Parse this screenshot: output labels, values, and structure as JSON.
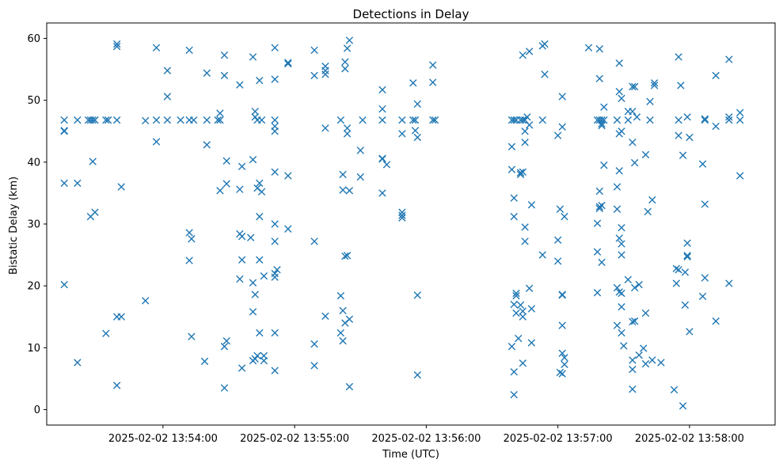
{
  "chart_data": {
    "type": "scatter",
    "title": "Detections in Delay",
    "xlabel": "Time (UTC)",
    "ylabel": "Bistatic Delay (km)",
    "x_axis_type": "time",
    "x_ticks": [
      {
        "t": "13:54:00",
        "label": "2025-02-02 13:54:00"
      },
      {
        "t": "13:55:00",
        "label": "2025-02-02 13:55:00"
      },
      {
        "t": "13:56:00",
        "label": "2025-02-02 13:56:00"
      },
      {
        "t": "13:57:00",
        "label": "2025-02-02 13:57:00"
      },
      {
        "t": "13:58:00",
        "label": "2025-02-02 13:58:00"
      }
    ],
    "y_ticks": [
      0,
      10,
      20,
      30,
      40,
      50,
      60
    ],
    "xlim": [
      "13:53:07",
      "13:58:39"
    ],
    "ylim": [
      -2.5,
      62.5
    ],
    "grid": false,
    "marker": "x",
    "color": "#1f77b4",
    "points": [
      {
        "t": "13:53:15",
        "y": 46.8
      },
      {
        "t": "13:53:15",
        "y": 45.1
      },
      {
        "t": "13:53:15",
        "y": 45.0
      },
      {
        "t": "13:53:15",
        "y": 36.6
      },
      {
        "t": "13:53:15",
        "y": 20.2
      },
      {
        "t": "13:53:21",
        "y": 46.8
      },
      {
        "t": "13:53:21",
        "y": 36.6
      },
      {
        "t": "13:53:21",
        "y": 7.6
      },
      {
        "t": "13:53:26",
        "y": 46.8
      },
      {
        "t": "13:53:27",
        "y": 46.8
      },
      {
        "t": "13:53:27",
        "y": 31.2
      },
      {
        "t": "13:53:28",
        "y": 46.8
      },
      {
        "t": "13:53:28",
        "y": 40.1
      },
      {
        "t": "13:53:29",
        "y": 46.8
      },
      {
        "t": "13:53:29",
        "y": 31.9
      },
      {
        "t": "13:53:34",
        "y": 46.8
      },
      {
        "t": "13:53:34",
        "y": 12.3
      },
      {
        "t": "13:53:35",
        "y": 46.8
      },
      {
        "t": "13:53:39",
        "y": 59.1
      },
      {
        "t": "13:53:39",
        "y": 58.7
      },
      {
        "t": "13:53:39",
        "y": 46.8
      },
      {
        "t": "13:53:39",
        "y": 15.0
      },
      {
        "t": "13:53:39",
        "y": 3.9
      },
      {
        "t": "13:53:41",
        "y": 36.0
      },
      {
        "t": "13:53:41",
        "y": 15.0
      },
      {
        "t": "13:53:52",
        "y": 46.7
      },
      {
        "t": "13:53:52",
        "y": 17.6
      },
      {
        "t": "13:53:57",
        "y": 58.5
      },
      {
        "t": "13:53:57",
        "y": 46.8
      },
      {
        "t": "13:53:57",
        "y": 43.3
      },
      {
        "t": "13:54:02",
        "y": 54.8
      },
      {
        "t": "13:54:02",
        "y": 50.6
      },
      {
        "t": "13:54:02",
        "y": 46.8
      },
      {
        "t": "13:54:08",
        "y": 46.8
      },
      {
        "t": "13:54:12",
        "y": 58.1
      },
      {
        "t": "13:54:12",
        "y": 46.8
      },
      {
        "t": "13:54:12",
        "y": 28.6
      },
      {
        "t": "13:54:12",
        "y": 24.1
      },
      {
        "t": "13:54:13",
        "y": 27.6
      },
      {
        "t": "13:54:13",
        "y": 11.8
      },
      {
        "t": "13:54:14",
        "y": 46.8
      },
      {
        "t": "13:54:19",
        "y": 7.8
      },
      {
        "t": "13:54:20",
        "y": 54.4
      },
      {
        "t": "13:54:20",
        "y": 46.8
      },
      {
        "t": "13:54:20",
        "y": 42.8
      },
      {
        "t": "13:54:25",
        "y": 46.8
      },
      {
        "t": "13:54:26",
        "y": 46.8
      },
      {
        "t": "13:54:26",
        "y": 47.9
      },
      {
        "t": "13:54:26",
        "y": 35.4
      },
      {
        "t": "13:54:28",
        "y": 57.3
      },
      {
        "t": "13:54:28",
        "y": 54.0
      },
      {
        "t": "13:54:28",
        "y": 10.2
      },
      {
        "t": "13:54:28",
        "y": 3.5
      },
      {
        "t": "13:54:29",
        "y": 40.2
      },
      {
        "t": "13:54:29",
        "y": 36.5
      },
      {
        "t": "13:54:29",
        "y": 11.1
      },
      {
        "t": "13:54:35",
        "y": 52.5
      },
      {
        "t": "13:54:35",
        "y": 35.6
      },
      {
        "t": "13:54:35",
        "y": 28.4
      },
      {
        "t": "13:54:35",
        "y": 21.1
      },
      {
        "t": "13:54:36",
        "y": 39.3
      },
      {
        "t": "13:54:36",
        "y": 28.0
      },
      {
        "t": "13:54:36",
        "y": 24.2
      },
      {
        "t": "13:54:36",
        "y": 6.7
      },
      {
        "t": "13:54:40",
        "y": 27.8
      },
      {
        "t": "13:54:41",
        "y": 57.0
      },
      {
        "t": "13:54:41",
        "y": 40.4
      },
      {
        "t": "13:54:41",
        "y": 20.5
      },
      {
        "t": "13:54:41",
        "y": 15.8
      },
      {
        "t": "13:54:41",
        "y": 7.9
      },
      {
        "t": "13:54:42",
        "y": 48.2
      },
      {
        "t": "13:54:42",
        "y": 47.3
      },
      {
        "t": "13:54:42",
        "y": 18.6
      },
      {
        "t": "13:54:42",
        "y": 8.2
      },
      {
        "t": "13:54:43",
        "y": 46.8
      },
      {
        "t": "13:54:43",
        "y": 35.8
      },
      {
        "t": "13:54:43",
        "y": 8.7
      },
      {
        "t": "13:54:44",
        "y": 53.2
      },
      {
        "t": "13:54:44",
        "y": 36.6
      },
      {
        "t": "13:54:44",
        "y": 31.2
      },
      {
        "t": "13:54:44",
        "y": 24.2
      },
      {
        "t": "13:54:44",
        "y": 12.4
      },
      {
        "t": "13:54:45",
        "y": 46.8
      },
      {
        "t": "13:54:45",
        "y": 35.2
      },
      {
        "t": "13:54:46",
        "y": 21.6
      },
      {
        "t": "13:54:46",
        "y": 8.7
      },
      {
        "t": "13:54:46",
        "y": 7.9
      },
      {
        "t": "13:54:51",
        "y": 58.5
      },
      {
        "t": "13:54:51",
        "y": 53.4
      },
      {
        "t": "13:54:51",
        "y": 46.8
      },
      {
        "t": "13:54:51",
        "y": 45.8
      },
      {
        "t": "13:54:51",
        "y": 45.0
      },
      {
        "t": "13:54:51",
        "y": 38.4
      },
      {
        "t": "13:54:51",
        "y": 30.0
      },
      {
        "t": "13:54:51",
        "y": 27.2
      },
      {
        "t": "13:54:51",
        "y": 22.0
      },
      {
        "t": "13:54:51",
        "y": 21.4
      },
      {
        "t": "13:54:51",
        "y": 12.4
      },
      {
        "t": "13:54:51",
        "y": 6.3
      },
      {
        "t": "13:54:52",
        "y": 22.6
      },
      {
        "t": "13:54:57",
        "y": 56.1
      },
      {
        "t": "13:54:57",
        "y": 55.9
      },
      {
        "t": "13:54:57",
        "y": 37.8
      },
      {
        "t": "13:54:57",
        "y": 29.2
      },
      {
        "t": "13:55:09",
        "y": 58.1
      },
      {
        "t": "13:55:09",
        "y": 54.0
      },
      {
        "t": "13:55:09",
        "y": 27.2
      },
      {
        "t": "13:55:09",
        "y": 10.6
      },
      {
        "t": "13:55:09",
        "y": 7.1
      },
      {
        "t": "13:55:14",
        "y": 55.5
      },
      {
        "t": "13:55:14",
        "y": 54.8
      },
      {
        "t": "13:55:14",
        "y": 54.2
      },
      {
        "t": "13:55:14",
        "y": 45.5
      },
      {
        "t": "13:55:14",
        "y": 15.1
      },
      {
        "t": "13:55:21",
        "y": 46.8
      },
      {
        "t": "13:55:21",
        "y": 18.4
      },
      {
        "t": "13:55:21",
        "y": 12.4
      },
      {
        "t": "13:55:22",
        "y": 38.0
      },
      {
        "t": "13:55:22",
        "y": 35.5
      },
      {
        "t": "13:55:22",
        "y": 16.0
      },
      {
        "t": "13:55:22",
        "y": 11.1
      },
      {
        "t": "13:55:23",
        "y": 56.2
      },
      {
        "t": "13:55:23",
        "y": 55.1
      },
      {
        "t": "13:55:23",
        "y": 24.8
      },
      {
        "t": "13:55:23",
        "y": 14.0
      },
      {
        "t": "13:55:24",
        "y": 58.4
      },
      {
        "t": "13:55:24",
        "y": 45.5
      },
      {
        "t": "13:55:24",
        "y": 44.6
      },
      {
        "t": "13:55:24",
        "y": 24.9
      },
      {
        "t": "13:55:25",
        "y": 59.7
      },
      {
        "t": "13:55:25",
        "y": 35.4
      },
      {
        "t": "13:55:25",
        "y": 14.6
      },
      {
        "t": "13:55:25",
        "y": 3.7
      },
      {
        "t": "13:55:30",
        "y": 41.9
      },
      {
        "t": "13:55:30",
        "y": 37.6
      },
      {
        "t": "13:55:31",
        "y": 46.8
      },
      {
        "t": "13:55:40",
        "y": 51.7
      },
      {
        "t": "13:55:40",
        "y": 48.6
      },
      {
        "t": "13:55:40",
        "y": 46.8
      },
      {
        "t": "13:55:40",
        "y": 40.6
      },
      {
        "t": "13:55:40",
        "y": 40.5
      },
      {
        "t": "13:55:40",
        "y": 35.0
      },
      {
        "t": "13:55:42",
        "y": 39.6
      },
      {
        "t": "13:55:49",
        "y": 46.8
      },
      {
        "t": "13:55:49",
        "y": 44.6
      },
      {
        "t": "13:55:49",
        "y": 31.9
      },
      {
        "t": "13:55:49",
        "y": 31.4
      },
      {
        "t": "13:55:49",
        "y": 31.0
      },
      {
        "t": "13:55:54",
        "y": 52.8
      },
      {
        "t": "13:55:54",
        "y": 46.8
      },
      {
        "t": "13:55:55",
        "y": 46.8
      },
      {
        "t": "13:55:55",
        "y": 45.1
      },
      {
        "t": "13:55:56",
        "y": 49.4
      },
      {
        "t": "13:55:56",
        "y": 44.0
      },
      {
        "t": "13:55:56",
        "y": 18.5
      },
      {
        "t": "13:55:56",
        "y": 5.6
      },
      {
        "t": "13:56:03",
        "y": 55.7
      },
      {
        "t": "13:56:03",
        "y": 52.9
      },
      {
        "t": "13:56:03",
        "y": 46.8
      },
      {
        "t": "13:56:04",
        "y": 46.8
      },
      {
        "t": "13:56:39",
        "y": 46.8
      },
      {
        "t": "13:56:39",
        "y": 42.5
      },
      {
        "t": "13:56:39",
        "y": 38.8
      },
      {
        "t": "13:56:39",
        "y": 10.2
      },
      {
        "t": "13:56:40",
        "y": 46.8
      },
      {
        "t": "13:56:40",
        "y": 34.2
      },
      {
        "t": "13:56:40",
        "y": 31.2
      },
      {
        "t": "13:56:40",
        "y": 17.0
      },
      {
        "t": "13:56:40",
        "y": 6.1
      },
      {
        "t": "13:56:40",
        "y": 2.4
      },
      {
        "t": "13:56:41",
        "y": 46.8
      },
      {
        "t": "13:56:41",
        "y": 18.8
      },
      {
        "t": "13:56:41",
        "y": 18.4
      },
      {
        "t": "13:56:41",
        "y": 15.6
      },
      {
        "t": "13:56:42",
        "y": 11.5
      },
      {
        "t": "13:56:43",
        "y": 46.8
      },
      {
        "t": "13:56:43",
        "y": 38.3
      },
      {
        "t": "13:56:43",
        "y": 38.0
      },
      {
        "t": "13:56:43",
        "y": 16.9
      },
      {
        "t": "13:56:44",
        "y": 57.3
      },
      {
        "t": "13:56:44",
        "y": 46.8
      },
      {
        "t": "13:56:44",
        "y": 38.4
      },
      {
        "t": "13:56:44",
        "y": 15.9
      },
      {
        "t": "13:56:44",
        "y": 15.0
      },
      {
        "t": "13:56:44",
        "y": 7.5
      },
      {
        "t": "13:56:45",
        "y": 46.8
      },
      {
        "t": "13:56:45",
        "y": 45.0
      },
      {
        "t": "13:56:45",
        "y": 43.2
      },
      {
        "t": "13:56:45",
        "y": 29.5
      },
      {
        "t": "13:56:45",
        "y": 27.2
      },
      {
        "t": "13:56:46",
        "y": 47.3
      },
      {
        "t": "13:56:47",
        "y": 57.9
      },
      {
        "t": "13:56:47",
        "y": 46.0
      },
      {
        "t": "13:56:47",
        "y": 19.6
      },
      {
        "t": "13:56:48",
        "y": 33.1
      },
      {
        "t": "13:56:48",
        "y": 16.3
      },
      {
        "t": "13:56:48",
        "y": 10.8
      },
      {
        "t": "13:56:53",
        "y": 58.8
      },
      {
        "t": "13:56:53",
        "y": 46.8
      },
      {
        "t": "13:56:53",
        "y": 25.0
      },
      {
        "t": "13:56:54",
        "y": 59.1
      },
      {
        "t": "13:56:54",
        "y": 54.2
      },
      {
        "t": "13:57:00",
        "y": 44.3
      },
      {
        "t": "13:57:00",
        "y": 27.4
      },
      {
        "t": "13:57:00",
        "y": 24.0
      },
      {
        "t": "13:57:01",
        "y": 32.4
      },
      {
        "t": "13:57:01",
        "y": 6.0
      },
      {
        "t": "13:57:02",
        "y": 50.6
      },
      {
        "t": "13:57:02",
        "y": 45.7
      },
      {
        "t": "13:57:02",
        "y": 18.6
      },
      {
        "t": "13:57:02",
        "y": 18.5
      },
      {
        "t": "13:57:02",
        "y": 13.6
      },
      {
        "t": "13:57:02",
        "y": 9.1
      },
      {
        "t": "13:57:02",
        "y": 5.8
      },
      {
        "t": "13:57:03",
        "y": 31.2
      },
      {
        "t": "13:57:03",
        "y": 8.4
      },
      {
        "t": "13:57:03",
        "y": 7.3
      },
      {
        "t": "13:57:14",
        "y": 58.5
      },
      {
        "t": "13:57:18",
        "y": 46.8
      },
      {
        "t": "13:57:18",
        "y": 30.1
      },
      {
        "t": "13:57:18",
        "y": 25.5
      },
      {
        "t": "13:57:18",
        "y": 18.9
      },
      {
        "t": "13:57:19",
        "y": 58.3
      },
      {
        "t": "13:57:19",
        "y": 53.5
      },
      {
        "t": "13:57:19",
        "y": 46.8
      },
      {
        "t": "13:57:19",
        "y": 35.3
      },
      {
        "t": "13:57:19",
        "y": 32.8
      },
      {
        "t": "13:57:19",
        "y": 32.5
      },
      {
        "t": "13:57:20",
        "y": 46.8
      },
      {
        "t": "13:57:20",
        "y": 46.2
      },
      {
        "t": "13:57:20",
        "y": 45.9
      },
      {
        "t": "13:57:20",
        "y": 33.0
      },
      {
        "t": "13:57:20",
        "y": 23.8
      },
      {
        "t": "13:57:21",
        "y": 48.9
      },
      {
        "t": "13:57:21",
        "y": 46.8
      },
      {
        "t": "13:57:21",
        "y": 39.5
      },
      {
        "t": "13:57:27",
        "y": 46.8
      },
      {
        "t": "13:57:27",
        "y": 36.0
      },
      {
        "t": "13:57:27",
        "y": 32.4
      },
      {
        "t": "13:57:27",
        "y": 19.7
      },
      {
        "t": "13:57:27",
        "y": 13.6
      },
      {
        "t": "13:57:28",
        "y": 56.0
      },
      {
        "t": "13:57:28",
        "y": 51.4
      },
      {
        "t": "13:57:28",
        "y": 44.6
      },
      {
        "t": "13:57:28",
        "y": 38.6
      },
      {
        "t": "13:57:28",
        "y": 27.7
      },
      {
        "t": "13:57:28",
        "y": 19.0
      },
      {
        "t": "13:57:29",
        "y": 50.3
      },
      {
        "t": "13:57:29",
        "y": 45.0
      },
      {
        "t": "13:57:29",
        "y": 29.4
      },
      {
        "t": "13:57:29",
        "y": 26.8
      },
      {
        "t": "13:57:29",
        "y": 25.0
      },
      {
        "t": "13:57:29",
        "y": 18.8
      },
      {
        "t": "13:57:29",
        "y": 16.6
      },
      {
        "t": "13:57:29",
        "y": 12.4
      },
      {
        "t": "13:57:30",
        "y": 10.3
      },
      {
        "t": "13:57:32",
        "y": 48.2
      },
      {
        "t": "13:57:32",
        "y": 46.8
      },
      {
        "t": "13:57:32",
        "y": 21.0
      },
      {
        "t": "13:57:34",
        "y": 52.2
      },
      {
        "t": "13:57:34",
        "y": 48.2
      },
      {
        "t": "13:57:34",
        "y": 43.2
      },
      {
        "t": "13:57:34",
        "y": 14.2
      },
      {
        "t": "13:57:34",
        "y": 8.0
      },
      {
        "t": "13:57:34",
        "y": 6.5
      },
      {
        "t": "13:57:34",
        "y": 3.3
      },
      {
        "t": "13:57:35",
        "y": 52.2
      },
      {
        "t": "13:57:35",
        "y": 39.9
      },
      {
        "t": "13:57:35",
        "y": 19.7
      },
      {
        "t": "13:57:35",
        "y": 14.3
      },
      {
        "t": "13:57:36",
        "y": 47.3
      },
      {
        "t": "13:57:37",
        "y": 20.2
      },
      {
        "t": "13:57:37",
        "y": 8.8
      },
      {
        "t": "13:57:39",
        "y": 9.9
      },
      {
        "t": "13:57:40",
        "y": 41.2
      },
      {
        "t": "13:57:40",
        "y": 15.6
      },
      {
        "t": "13:57:40",
        "y": 7.4
      },
      {
        "t": "13:57:41",
        "y": 32.0
      },
      {
        "t": "13:57:42",
        "y": 49.8
      },
      {
        "t": "13:57:42",
        "y": 46.8
      },
      {
        "t": "13:57:43",
        "y": 8.0
      },
      {
        "t": "13:57:43",
        "y": 33.9
      },
      {
        "t": "13:57:44",
        "y": 52.8
      },
      {
        "t": "13:57:44",
        "y": 52.4
      },
      {
        "t": "13:57:47",
        "y": 7.6
      },
      {
        "t": "13:57:53",
        "y": 3.2
      },
      {
        "t": "13:57:54",
        "y": 22.8
      },
      {
        "t": "13:57:54",
        "y": 20.4
      },
      {
        "t": "13:57:55",
        "y": 57.0
      },
      {
        "t": "13:57:55",
        "y": 46.8
      },
      {
        "t": "13:57:55",
        "y": 44.3
      },
      {
        "t": "13:57:55",
        "y": 22.6
      },
      {
        "t": "13:57:56",
        "y": 52.4
      },
      {
        "t": "13:57:57",
        "y": 41.1
      },
      {
        "t": "13:57:57",
        "y": 0.6
      },
      {
        "t": "13:57:58",
        "y": 22.2
      },
      {
        "t": "13:57:58",
        "y": 16.9
      },
      {
        "t": "13:57:59",
        "y": 47.3
      },
      {
        "t": "13:57:59",
        "y": 26.9
      },
      {
        "t": "13:57:59",
        "y": 24.9
      },
      {
        "t": "13:57:59",
        "y": 24.7
      },
      {
        "t": "13:58:00",
        "y": 44.0
      },
      {
        "t": "13:58:00",
        "y": 12.6
      },
      {
        "t": "13:58:06",
        "y": 39.7
      },
      {
        "t": "13:58:06",
        "y": 18.3
      },
      {
        "t": "13:58:07",
        "y": 47.0
      },
      {
        "t": "13:58:07",
        "y": 46.8
      },
      {
        "t": "13:58:07",
        "y": 33.2
      },
      {
        "t": "13:58:07",
        "y": 21.3
      },
      {
        "t": "13:58:12",
        "y": 54.0
      },
      {
        "t": "13:58:12",
        "y": 45.8
      },
      {
        "t": "13:58:12",
        "y": 14.3
      },
      {
        "t": "13:58:18",
        "y": 56.6
      },
      {
        "t": "13:58:18",
        "y": 47.3
      },
      {
        "t": "13:58:18",
        "y": 46.8
      },
      {
        "t": "13:58:18",
        "y": 20.4
      },
      {
        "t": "13:58:23",
        "y": 48.0
      },
      {
        "t": "13:58:23",
        "y": 46.8
      },
      {
        "t": "13:58:23",
        "y": 37.8
      }
    ]
  }
}
